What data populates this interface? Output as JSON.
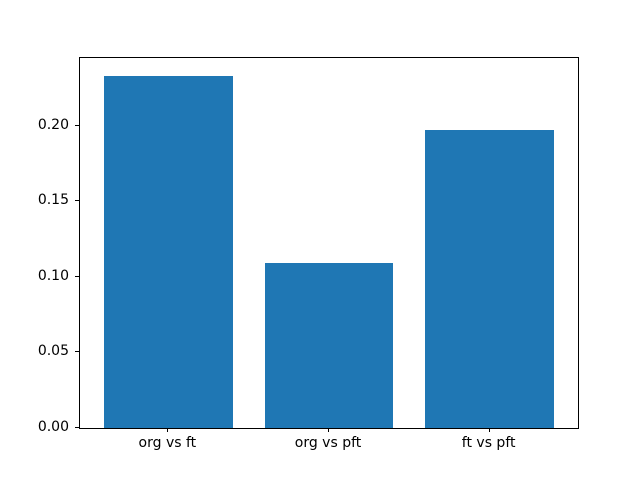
{
  "chart_data": {
    "type": "bar",
    "title": "",
    "xlabel": "",
    "ylabel": "",
    "categories": [
      "org vs ft",
      "org vs pft",
      "ft vs pft"
    ],
    "values": [
      0.233,
      0.109,
      0.197
    ],
    "ylim": [
      0,
      0.245
    ],
    "xlim": [
      -0.55,
      2.55
    ],
    "bar_width": 0.8,
    "yticks": [
      0.0,
      0.05,
      0.1,
      0.15,
      0.2
    ],
    "ytick_labels": [
      "0.00",
      "0.05",
      "0.10",
      "0.15",
      "0.20"
    ],
    "grid": false,
    "legend": "none",
    "bar_color": "#1f77b4",
    "background_color": "#ffffff",
    "spine_color": "#000000"
  }
}
